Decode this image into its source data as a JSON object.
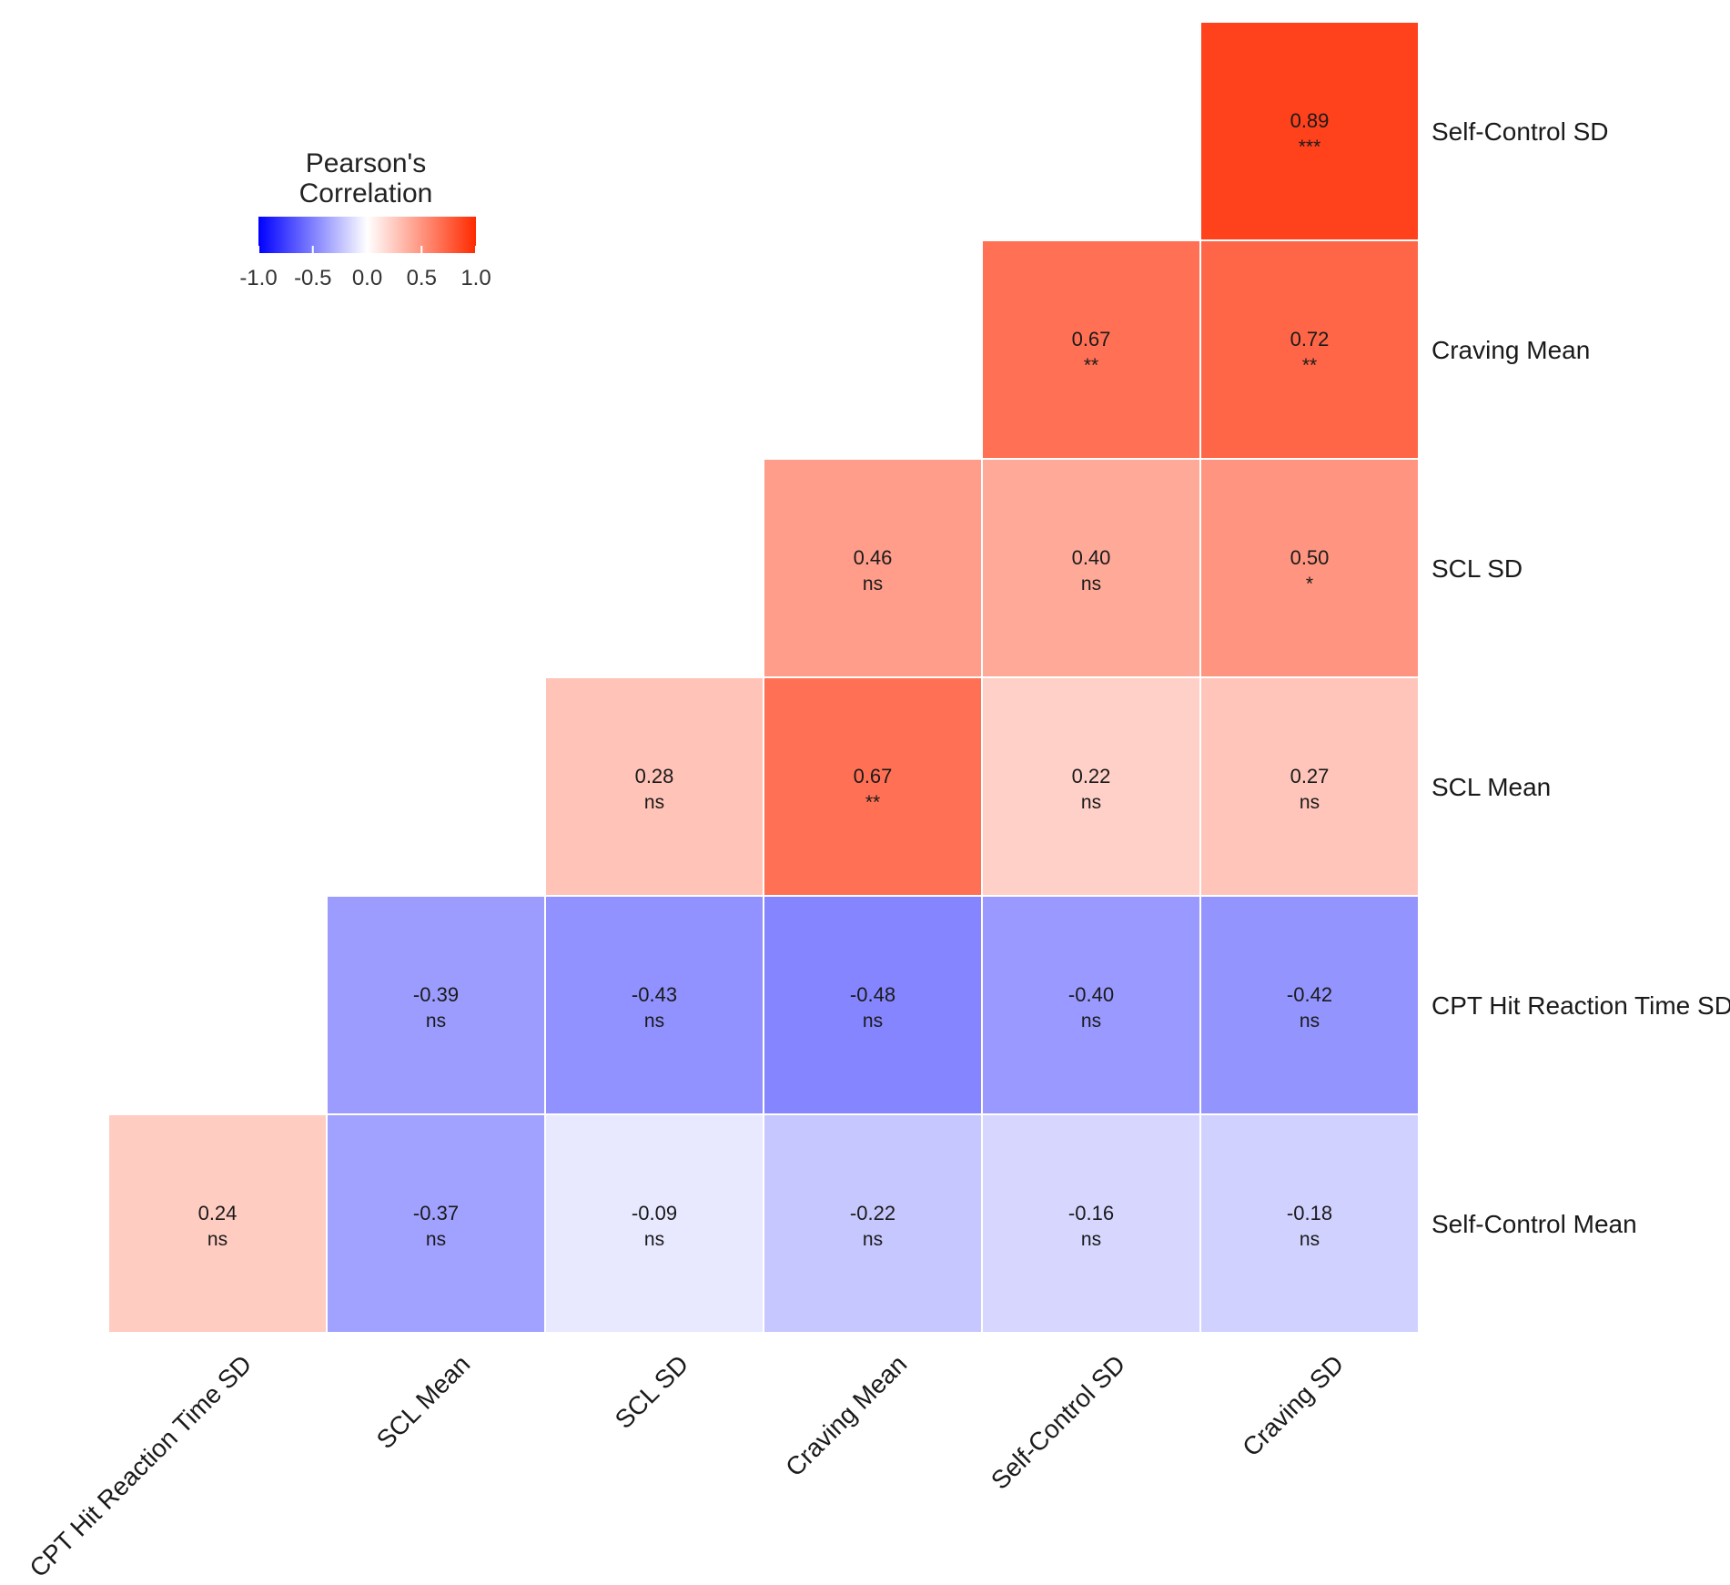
{
  "chart_data": {
    "type": "heatmap",
    "subtype": "lower-triangle correlation matrix",
    "legend": {
      "title_line1": "Pearson's",
      "title_line2": "Correlation",
      "range": [
        -1.0,
        1.0
      ],
      "ticks": [
        {
          "value": -1.0,
          "label": "-1.0"
        },
        {
          "value": -0.5,
          "label": "-0.5"
        },
        {
          "value": 0.0,
          "label": "0.0"
        },
        {
          "value": 0.5,
          "label": "0.5"
        },
        {
          "value": 1.0,
          "label": "1.0"
        }
      ],
      "colors": {
        "low": "#0000ff",
        "mid": "#ffffff",
        "high": "#ff2a00"
      },
      "placement": "top-left"
    },
    "columns": [
      "CPT Hit Reaction Time SD",
      "SCL Mean",
      "SCL SD",
      "Craving Mean",
      "Self-Control SD",
      "Craving SD"
    ],
    "rows": [
      "Self-Control SD",
      "Craving Mean",
      "SCL SD",
      "SCL Mean",
      "CPT Hit Reaction Time SD",
      "Self-Control Mean"
    ],
    "cells": [
      {
        "row": 0,
        "col": 5,
        "value": 0.89,
        "label": "0.89",
        "sig": "***"
      },
      {
        "row": 1,
        "col": 4,
        "value": 0.67,
        "label": "0.67",
        "sig": "**"
      },
      {
        "row": 1,
        "col": 5,
        "value": 0.72,
        "label": "0.72",
        "sig": "**"
      },
      {
        "row": 2,
        "col": 3,
        "value": 0.46,
        "label": "0.46",
        "sig": "ns"
      },
      {
        "row": 2,
        "col": 4,
        "value": 0.4,
        "label": "0.40",
        "sig": "ns"
      },
      {
        "row": 2,
        "col": 5,
        "value": 0.5,
        "label": "0.50",
        "sig": "*"
      },
      {
        "row": 3,
        "col": 2,
        "value": 0.28,
        "label": "0.28",
        "sig": "ns"
      },
      {
        "row": 3,
        "col": 3,
        "value": 0.67,
        "label": "0.67",
        "sig": "**"
      },
      {
        "row": 3,
        "col": 4,
        "value": 0.22,
        "label": "0.22",
        "sig": "ns"
      },
      {
        "row": 3,
        "col": 5,
        "value": 0.27,
        "label": "0.27",
        "sig": "ns"
      },
      {
        "row": 4,
        "col": 1,
        "value": -0.39,
        "label": "-0.39",
        "sig": "ns"
      },
      {
        "row": 4,
        "col": 2,
        "value": -0.43,
        "label": "-0.43",
        "sig": "ns"
      },
      {
        "row": 4,
        "col": 3,
        "value": -0.48,
        "label": "-0.48",
        "sig": "ns"
      },
      {
        "row": 4,
        "col": 4,
        "value": -0.4,
        "label": "-0.40",
        "sig": "ns"
      },
      {
        "row": 4,
        "col": 5,
        "value": -0.42,
        "label": "-0.42",
        "sig": "ns"
      },
      {
        "row": 5,
        "col": 0,
        "value": 0.24,
        "label": "0.24",
        "sig": "ns"
      },
      {
        "row": 5,
        "col": 1,
        "value": -0.37,
        "label": "-0.37",
        "sig": "ns"
      },
      {
        "row": 5,
        "col": 2,
        "value": -0.09,
        "label": "-0.09",
        "sig": "ns"
      },
      {
        "row": 5,
        "col": 3,
        "value": -0.22,
        "label": "-0.22",
        "sig": "ns"
      },
      {
        "row": 5,
        "col": 4,
        "value": -0.16,
        "label": "-0.16",
        "sig": "ns"
      },
      {
        "row": 5,
        "col": 5,
        "value": -0.18,
        "label": "-0.18",
        "sig": "ns"
      }
    ]
  }
}
